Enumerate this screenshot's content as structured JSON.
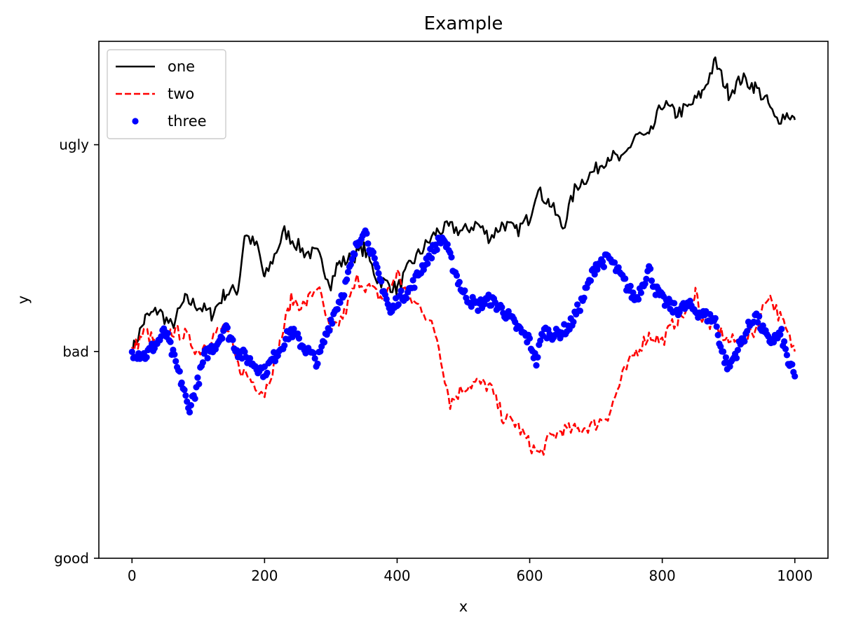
{
  "chart_data": {
    "type": "line",
    "title": "Example",
    "xlabel": "x",
    "ylabel": "y",
    "xlim": [
      -50,
      1050
    ],
    "ylim": [
      0,
      2.5
    ],
    "xticks": [
      {
        "value": 0,
        "label": "0"
      },
      {
        "value": 200,
        "label": "200"
      },
      {
        "value": 400,
        "label": "400"
      },
      {
        "value": 600,
        "label": "600"
      },
      {
        "value": 800,
        "label": "800"
      },
      {
        "value": 1000,
        "label": "1000"
      }
    ],
    "yticks": [
      {
        "value": 0,
        "label": "good"
      },
      {
        "value": 1,
        "label": "bad"
      },
      {
        "value": 2,
        "label": "ugly"
      }
    ],
    "grid": false,
    "legend_position": "top-left",
    "series": [
      {
        "name": "one",
        "style": "solid",
        "color": "#000000",
        "x": [
          0,
          20,
          40,
          60,
          80,
          100,
          120,
          140,
          160,
          170,
          190,
          200,
          230,
          260,
          280,
          300,
          310,
          330,
          350,
          370,
          390,
          400,
          420,
          440,
          460,
          480,
          500,
          520,
          540,
          560,
          580,
          600,
          610,
          630,
          650,
          670,
          700,
          720,
          740,
          760,
          780,
          800,
          820,
          840,
          860,
          880,
          900,
          920,
          940,
          960,
          970,
          990,
          1000
        ],
        "y": [
          1.0,
          1.16,
          1.2,
          1.12,
          1.25,
          1.22,
          1.18,
          1.28,
          1.3,
          1.57,
          1.5,
          1.35,
          1.58,
          1.48,
          1.47,
          1.33,
          1.42,
          1.45,
          1.5,
          1.35,
          1.32,
          1.3,
          1.42,
          1.5,
          1.58,
          1.6,
          1.58,
          1.62,
          1.55,
          1.62,
          1.58,
          1.65,
          1.78,
          1.72,
          1.6,
          1.8,
          1.88,
          1.95,
          1.92,
          2.05,
          2.03,
          2.2,
          2.15,
          2.18,
          2.25,
          2.4,
          2.25,
          2.32,
          2.28,
          2.2,
          2.12,
          2.15,
          2.12
        ]
      },
      {
        "name": "two",
        "style": "dashed",
        "color": "#ff0000",
        "x": [
          0,
          20,
          40,
          60,
          80,
          100,
          120,
          140,
          160,
          180,
          200,
          220,
          240,
          260,
          280,
          300,
          320,
          340,
          360,
          380,
          400,
          420,
          440,
          460,
          480,
          500,
          520,
          540,
          560,
          580,
          600,
          615,
          630,
          650,
          670,
          700,
          720,
          740,
          760,
          780,
          800,
          820,
          840,
          850,
          860,
          880,
          900,
          920,
          940,
          960,
          980,
          1000
        ],
        "y": [
          1.0,
          1.1,
          1.02,
          1.1,
          1.08,
          1.0,
          1.07,
          1.12,
          0.93,
          0.86,
          0.8,
          1.0,
          1.25,
          1.22,
          1.32,
          1.08,
          1.18,
          1.35,
          1.3,
          1.25,
          1.38,
          1.25,
          1.2,
          1.07,
          0.75,
          0.83,
          0.85,
          0.83,
          0.68,
          0.65,
          0.55,
          0.5,
          0.58,
          0.62,
          0.62,
          0.65,
          0.7,
          0.88,
          1.0,
          1.08,
          1.05,
          1.15,
          1.2,
          1.3,
          1.15,
          1.12,
          1.05,
          1.05,
          1.1,
          1.28,
          1.15,
          1.0
        ]
      },
      {
        "name": "three",
        "style": "markers",
        "color": "#0000ff",
        "x": [
          0,
          20,
          40,
          50,
          60,
          75,
          85,
          95,
          110,
          130,
          140,
          160,
          180,
          200,
          220,
          240,
          260,
          280,
          300,
          320,
          340,
          350,
          360,
          370,
          380,
          390,
          400,
          420,
          440,
          460,
          470,
          480,
          500,
          520,
          540,
          560,
          580,
          600,
          610,
          620,
          640,
          660,
          680,
          700,
          720,
          740,
          760,
          780,
          790,
          800,
          820,
          840,
          860,
          880,
          890,
          900,
          920,
          940,
          960,
          980,
          990,
          1000
        ],
        "y": [
          1.0,
          0.98,
          1.05,
          1.1,
          1.0,
          0.85,
          0.72,
          0.8,
          0.98,
          1.05,
          1.12,
          1.0,
          0.95,
          0.9,
          1.0,
          1.1,
          1.02,
          0.95,
          1.15,
          1.3,
          1.52,
          1.6,
          1.5,
          1.38,
          1.3,
          1.18,
          1.25,
          1.3,
          1.42,
          1.52,
          1.55,
          1.45,
          1.28,
          1.22,
          1.25,
          1.2,
          1.12,
          1.05,
          0.95,
          1.1,
          1.08,
          1.12,
          1.25,
          1.42,
          1.45,
          1.35,
          1.25,
          1.4,
          1.3,
          1.25,
          1.2,
          1.22,
          1.18,
          1.15,
          1.0,
          0.92,
          1.05,
          1.18,
          1.05,
          1.08,
          0.95,
          0.88
        ]
      }
    ]
  }
}
